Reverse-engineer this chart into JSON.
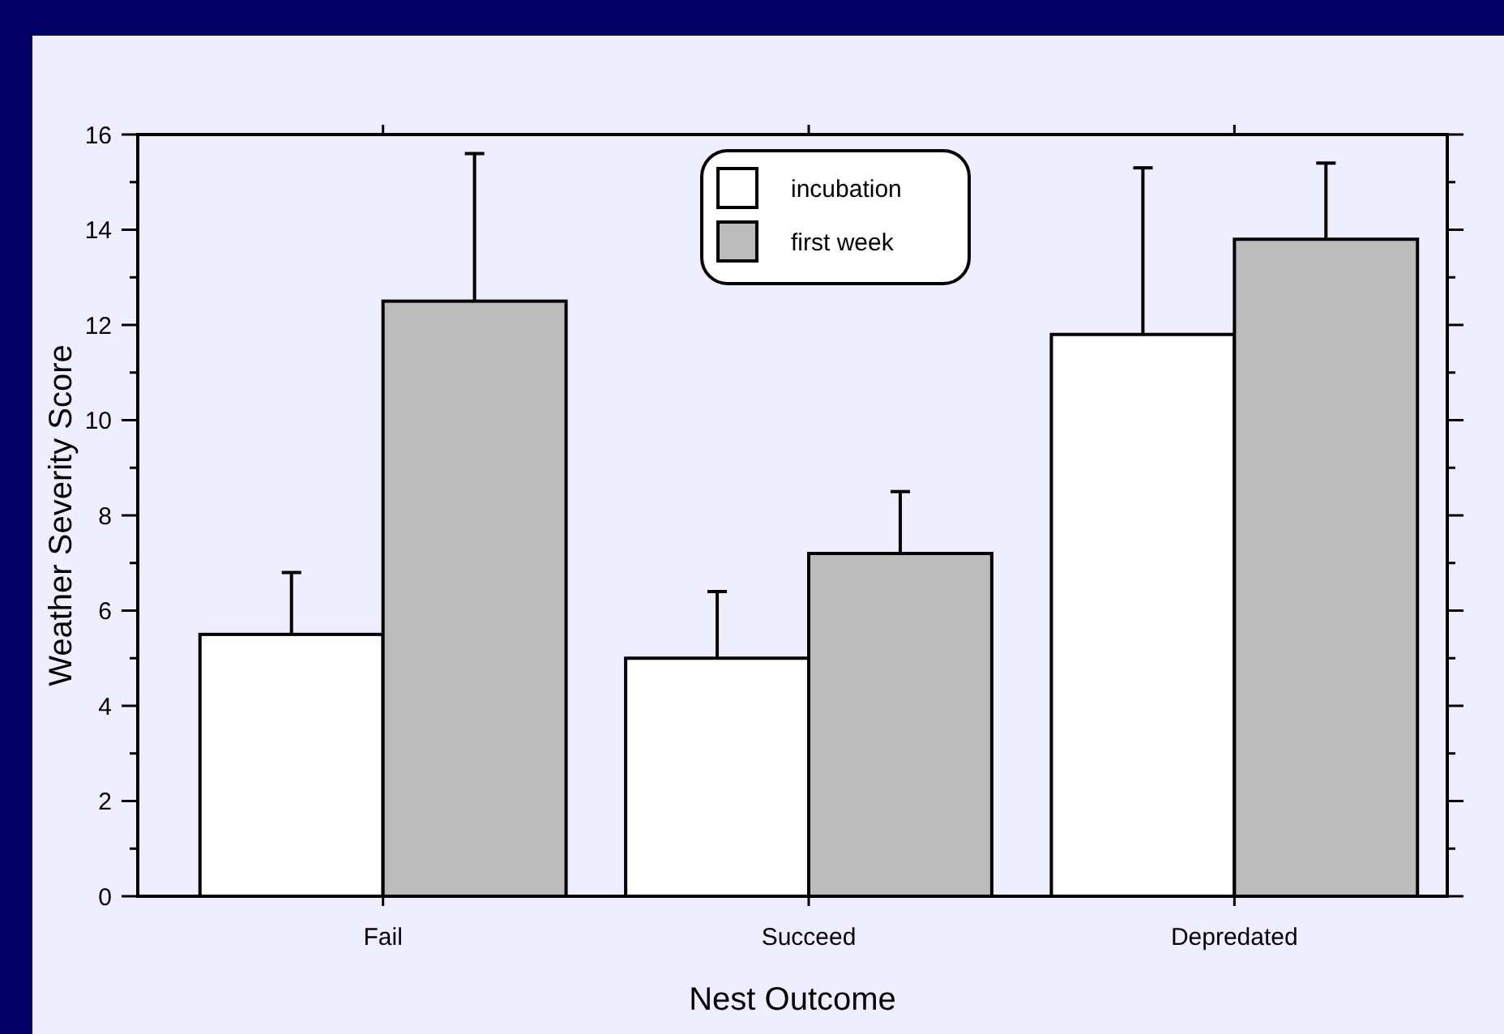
{
  "chart_data": {
    "type": "bar",
    "xlabel": "Nest Outcome",
    "ylabel": "Weather Severity Score",
    "categories": [
      "Fail",
      "Succeed",
      "Depredated"
    ],
    "series": [
      {
        "name": "incubation",
        "color": "#ffffff",
        "values": [
          5.5,
          5.0,
          11.8
        ],
        "errors": [
          1.3,
          1.4,
          3.5
        ]
      },
      {
        "name": "first week",
        "color": "#bbbbbb",
        "values": [
          12.5,
          7.2,
          13.8
        ],
        "errors": [
          3.1,
          1.3,
          1.6
        ]
      }
    ],
    "ylim": [
      0,
      16
    ],
    "yticks": [
      0,
      {
        "value": 1,
        "label": null
      },
      2,
      {
        "value": 3,
        "label": null
      },
      4,
      {
        "value": 5,
        "label": null
      },
      6,
      {
        "value": 7,
        "label": null
      },
      8,
      {
        "value": 9,
        "label": null
      },
      10,
      {
        "value": 11,
        "label": null
      },
      12,
      {
        "value": 13,
        "label": null
      },
      14,
      {
        "value": 15,
        "label": null
      },
      16
    ],
    "legend": "top",
    "grid": false
  }
}
